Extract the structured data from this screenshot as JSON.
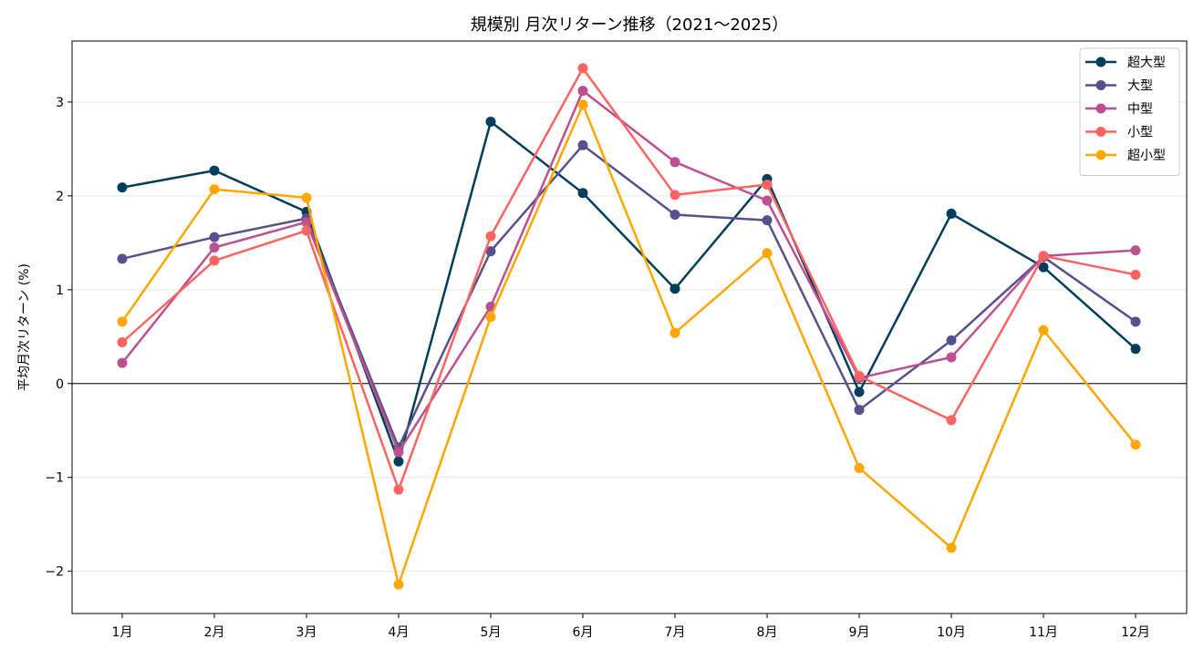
{
  "chart_data": {
    "type": "line",
    "title": "規模別 月次リターン推移（2021～2025）",
    "xlabel": "",
    "ylabel": "平均月次リターン (%)",
    "categories": [
      "1月",
      "2月",
      "3月",
      "4月",
      "5月",
      "6月",
      "7月",
      "8月",
      "9月",
      "10月",
      "11月",
      "12月"
    ],
    "ylim": [
      -2.45,
      3.65
    ],
    "yticks": [
      -2,
      -1,
      0,
      1,
      2,
      3
    ],
    "ytick_labels": [
      "−2",
      "−1",
      "0",
      "1",
      "2",
      "3"
    ],
    "grid": true,
    "zero_line": true,
    "legend_position": "top-right",
    "series": [
      {
        "name": "超大型",
        "color": "#003f5c",
        "values": [
          2.09,
          2.27,
          1.83,
          -0.83,
          2.79,
          2.03,
          1.01,
          2.18,
          -0.09,
          1.81,
          1.24,
          0.37
        ]
      },
      {
        "name": "大型",
        "color": "#58508d",
        "values": [
          1.33,
          1.56,
          1.76,
          -0.68,
          1.41,
          2.54,
          1.8,
          1.74,
          -0.28,
          0.46,
          1.35,
          0.66
        ]
      },
      {
        "name": "中型",
        "color": "#bc5090",
        "values": [
          0.22,
          1.45,
          1.72,
          -0.73,
          0.82,
          3.12,
          2.36,
          1.95,
          0.06,
          0.28,
          1.36,
          1.42
        ]
      },
      {
        "name": "小型",
        "color": "#ff6361",
        "values": [
          0.44,
          1.31,
          1.63,
          -1.13,
          1.57,
          3.36,
          2.01,
          2.12,
          0.08,
          -0.39,
          1.36,
          1.16
        ]
      },
      {
        "name": "超小型",
        "color": "#ffa600",
        "values": [
          0.66,
          2.07,
          1.98,
          -2.14,
          0.71,
          2.97,
          0.54,
          1.39,
          -0.9,
          -1.75,
          0.57,
          -0.65
        ]
      }
    ]
  }
}
